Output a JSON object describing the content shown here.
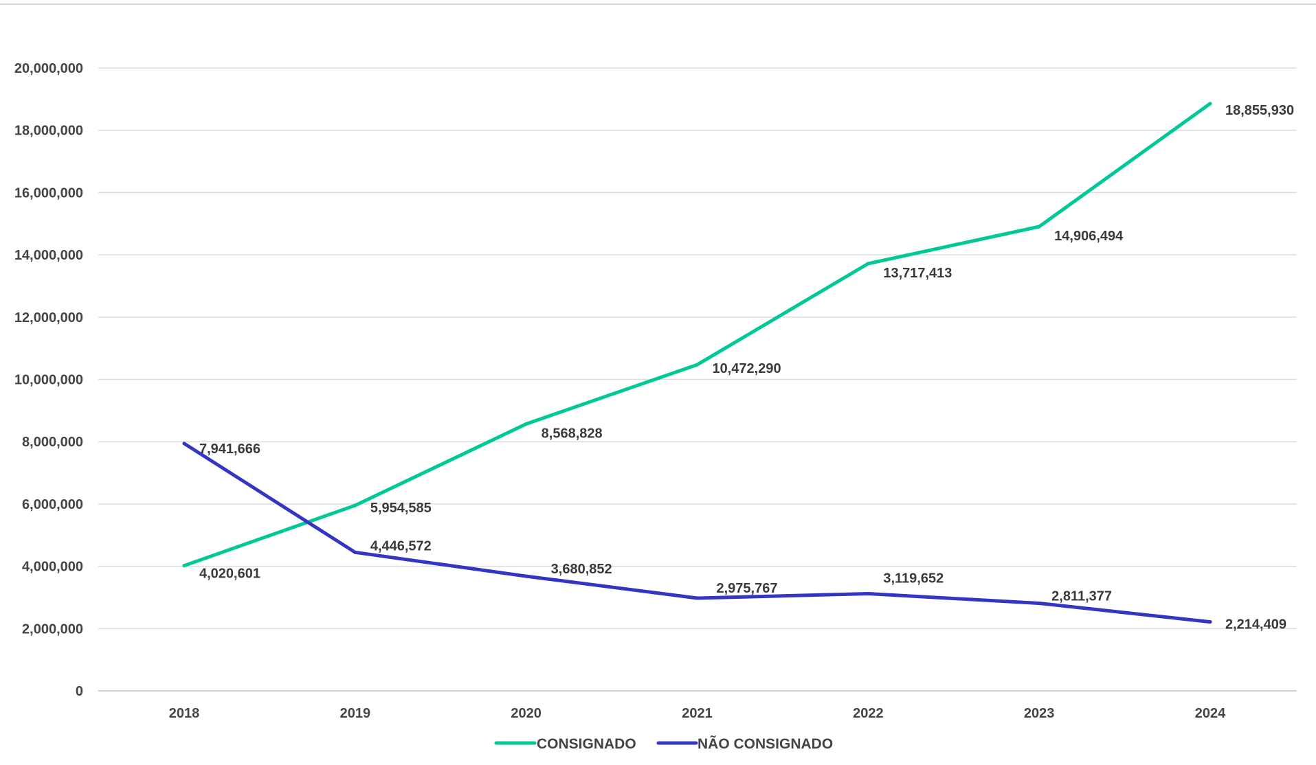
{
  "chart_data": {
    "type": "line",
    "title": "",
    "xlabel": "",
    "ylabel": "",
    "categories": [
      "2018",
      "2019",
      "2020",
      "2021",
      "2022",
      "2023",
      "2024"
    ],
    "ylim": [
      0,
      20000000
    ],
    "yticks": [
      "0",
      "2,000,000",
      "4,000,000",
      "6,000,000",
      "8,000,000",
      "10,000,000",
      "12,000,000",
      "14,000,000",
      "16,000,000",
      "18,000,000",
      "20,000,000"
    ],
    "grid": true,
    "legend_position": "bottom",
    "series": [
      {
        "name": "CONSIGNADO",
        "color": "#00c896",
        "values": [
          4020601,
          5954585,
          8568828,
          10472290,
          13717413,
          14906494,
          18855930
        ],
        "labels": [
          "4,020,601",
          "5,954,585",
          "8,568,828",
          "10,472,290",
          "13,717,413",
          "14,906,494",
          "18,855,930"
        ]
      },
      {
        "name": "NÃO CONSIGNADO",
        "color": "#3535c4",
        "values": [
          7941666,
          4446572,
          3680852,
          2975767,
          3119652,
          2811377,
          2214409
        ],
        "labels": [
          "7,941,666",
          "4,446,572",
          "3,680,852",
          "2,975,767",
          "3,119,652",
          "2,811,377",
          "2,214,409"
        ]
      }
    ]
  }
}
